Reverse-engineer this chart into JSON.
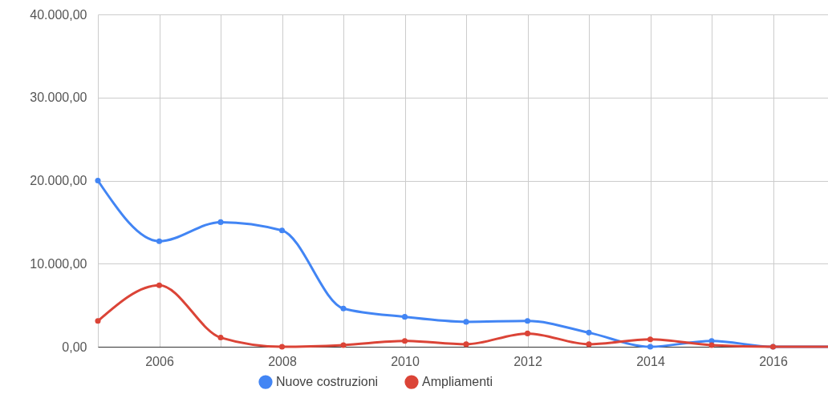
{
  "chart_data": {
    "type": "line",
    "x": [
      2005,
      2006,
      2007,
      2008,
      2009,
      2010,
      2011,
      2012,
      2013,
      2014,
      2015,
      2016,
      2017
    ],
    "series": [
      {
        "name": "Nuove costruzioni",
        "color": "#4285f4",
        "values": [
          20000,
          12700,
          15000,
          14000,
          4600,
          3600,
          3000,
          3100,
          1700,
          0,
          700,
          0,
          0
        ]
      },
      {
        "name": "Ampliamenti",
        "color": "#db4437",
        "values": [
          3100,
          7400,
          1100,
          0,
          200,
          700,
          300,
          1600,
          300,
          900,
          200,
          0,
          0
        ]
      }
    ],
    "xlim": [
      2005,
      2017
    ],
    "xticks": [
      {
        "value": 2005,
        "label": null
      },
      2006,
      {
        "value": 2007,
        "label": null
      },
      2008,
      {
        "value": 2009,
        "label": null
      },
      2010,
      {
        "value": 2011,
        "label": null
      },
      2012,
      {
        "value": 2013,
        "label": null
      },
      2014,
      {
        "value": 2015,
        "label": null
      },
      2016,
      {
        "value": 2017,
        "label": null
      }
    ],
    "ylim": [
      0,
      40000
    ],
    "yticks": [
      {
        "value": 0,
        "label": "0,00"
      },
      {
        "value": 10000,
        "label": "10.000,00"
      },
      {
        "value": 20000,
        "label": "20.000,00"
      },
      {
        "value": 30000,
        "label": "30.000,00"
      },
      {
        "value": 40000,
        "label": "40.000,00"
      }
    ],
    "grid": true,
    "legend": "bottom",
    "marker": "circle",
    "line_style": "solid"
  }
}
